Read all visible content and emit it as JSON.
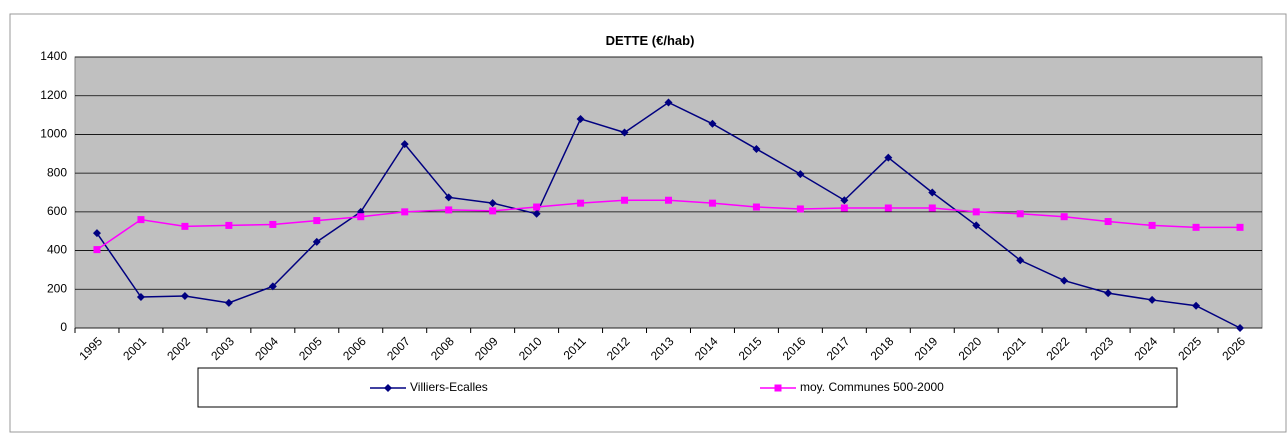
{
  "chart_data": {
    "type": "line",
    "title": "DETTE (€/hab)",
    "categories": [
      "1995",
      "2001",
      "2002",
      "2003",
      "2004",
      "2005",
      "2006",
      "2007",
      "2008",
      "2009",
      "2010",
      "2011",
      "2012",
      "2013",
      "2014",
      "2015",
      "2016",
      "2017",
      "2018",
      "2019",
      "2020",
      "2021",
      "2022",
      "2023",
      "2024",
      "2025",
      "2026"
    ],
    "series": [
      {
        "name": "Villiers-Ecalles",
        "color": "#000080",
        "marker": "diamond",
        "values": [
          490,
          160,
          165,
          130,
          215,
          445,
          600,
          950,
          675,
          645,
          590,
          1080,
          1010,
          1165,
          1055,
          925,
          795,
          660,
          880,
          700,
          530,
          350,
          245,
          180,
          145,
          115,
          0
        ]
      },
      {
        "name": "moy. Communes 500-2000",
        "color": "#ff00ff",
        "marker": "square",
        "values": [
          405,
          560,
          525,
          530,
          535,
          555,
          575,
          600,
          610,
          605,
          625,
          645,
          660,
          660,
          645,
          625,
          615,
          620,
          620,
          620,
          600,
          590,
          575,
          550,
          530,
          520,
          520
        ]
      }
    ],
    "ylim": [
      0,
      1400
    ],
    "yticks": [
      0,
      200,
      400,
      600,
      800,
      1000,
      1200,
      1400
    ],
    "grid": true
  }
}
